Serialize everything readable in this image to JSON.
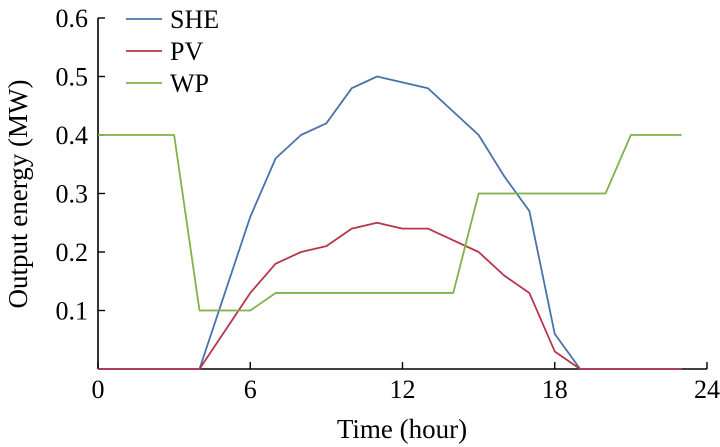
{
  "chart_data": {
    "type": "line",
    "title": "",
    "xlabel": "Time (hour)",
    "ylabel": "Output energy (MW)",
    "xlim": [
      0,
      24
    ],
    "ylim": [
      0,
      0.6
    ],
    "xticks": [
      0,
      6,
      12,
      18,
      24
    ],
    "yticks": [
      0.1,
      0.2,
      0.3,
      0.4,
      0.5,
      0.6
    ],
    "xtick_labels": [
      "0",
      "6",
      "12",
      "18",
      "24"
    ],
    "ytick_labels": [
      "0.1",
      "0.2",
      "0.3",
      "0.4",
      "0.5",
      "0.6"
    ],
    "grid": false,
    "legend_position": "top-left",
    "x": [
      0,
      1,
      2,
      3,
      4,
      5,
      6,
      7,
      8,
      9,
      10,
      11,
      12,
      13,
      14,
      15,
      16,
      17,
      18,
      19,
      20,
      21,
      22,
      23
    ],
    "series": [
      {
        "name": "SHE",
        "color": "#4a72a8",
        "values": [
          0,
          0,
          0,
          0,
          0,
          0.13,
          0.26,
          0.36,
          0.4,
          0.42,
          0.48,
          0.5,
          0.49,
          0.48,
          0.44,
          0.4,
          0.33,
          0.27,
          0.06,
          0,
          0,
          0,
          0,
          0
        ]
      },
      {
        "name": "PV",
        "color": "#b5364b",
        "values": [
          0,
          0,
          0,
          0,
          0,
          0.065,
          0.13,
          0.18,
          0.2,
          0.21,
          0.24,
          0.25,
          0.24,
          0.24,
          0.22,
          0.2,
          0.16,
          0.13,
          0.03,
          0,
          0,
          0,
          0,
          0
        ]
      },
      {
        "name": "WP",
        "color": "#7fb34a",
        "values": [
          0.4,
          0.4,
          0.4,
          0.4,
          0.1,
          0.1,
          0.1,
          0.13,
          0.13,
          0.13,
          0.13,
          0.13,
          0.13,
          0.13,
          0.13,
          0.3,
          0.3,
          0.3,
          0.3,
          0.3,
          0.3,
          0.4,
          0.4,
          0.4
        ]
      }
    ]
  }
}
